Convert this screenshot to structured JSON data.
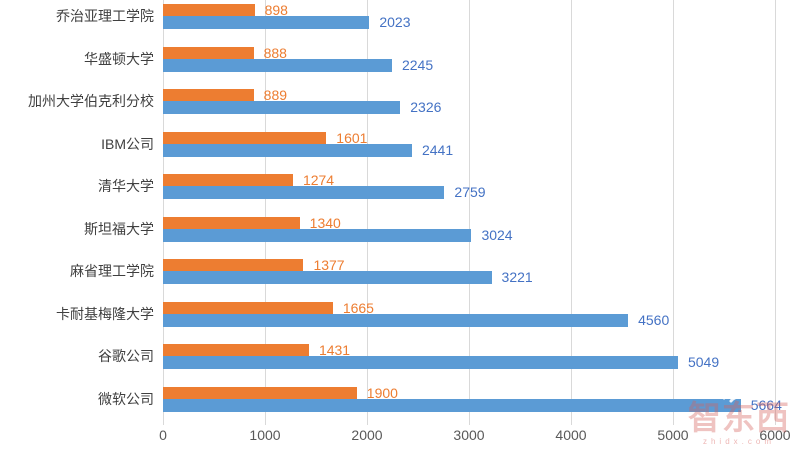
{
  "chart_data": {
    "type": "bar",
    "orientation": "horizontal",
    "title": "",
    "categories": [
      "乔治亚理工学院",
      "华盛顿大学",
      "加州大学伯克利分校",
      "IBM公司",
      "清华大学",
      "斯坦福大学",
      "麻省理工学院",
      "卡耐基梅隆大学",
      "谷歌公司",
      "微软公司"
    ],
    "series": [
      {
        "name": "orange-series",
        "color": "#ED7D31",
        "label_color": "#ED7D31",
        "values": [
          898,
          888,
          889,
          1601,
          1274,
          1340,
          1377,
          1665,
          1431,
          1900
        ]
      },
      {
        "name": "blue-series",
        "color": "#5B9BD5",
        "label_color": "#4472C4",
        "values": [
          2023,
          2245,
          2326,
          2441,
          2759,
          3024,
          3221,
          4560,
          5049,
          5664
        ]
      }
    ],
    "x_axis": {
      "ticks": [
        "0",
        "1000",
        "2000",
        "3000",
        "4000",
        "5000",
        "6000"
      ],
      "min": 0,
      "max": 6000
    },
    "grid": true,
    "legend": false
  },
  "watermark": {
    "text": "智东西",
    "subtext": "zhidx.com",
    "icon": "wifi-arcs-icon"
  },
  "colors": {
    "gridline": "#D9D9D9",
    "axis_text": "#595959",
    "category_text": "#3F3F3F",
    "background": "#FFFFFF"
  }
}
